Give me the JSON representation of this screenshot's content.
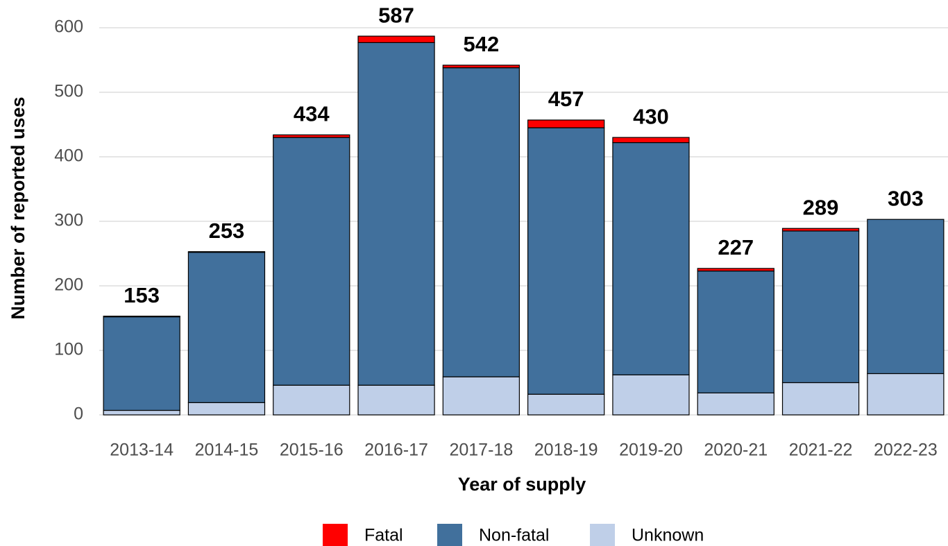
{
  "chart_data": {
    "type": "stacked-bar",
    "x_label": "Year of supply",
    "y_label": "Number of reported uses",
    "categories": [
      "2013-14",
      "2014-15",
      "2015-16",
      "2016-17",
      "2017-18",
      "2018-19",
      "2019-20",
      "2020-21",
      "2021-22",
      "2022-23"
    ],
    "series": [
      {
        "name": "Fatal",
        "color": "#ff0000",
        "values": [
          1,
          1,
          4,
          10,
          4,
          12,
          8,
          4,
          4,
          0
        ]
      },
      {
        "name": "Non-fatal",
        "color": "#41709c",
        "values": [
          145,
          233,
          384,
          531,
          479,
          413,
          360,
          189,
          235,
          239
        ]
      },
      {
        "name": "Unknown",
        "color": "#bfcfe8",
        "values": [
          7,
          19,
          46,
          46,
          59,
          32,
          62,
          34,
          50,
          64
        ]
      }
    ],
    "totals": [
      153,
      253,
      434,
      587,
      542,
      457,
      430,
      227,
      289,
      303
    ],
    "ylim": [
      0,
      620
    ],
    "yticks": [
      0,
      100,
      200,
      300,
      400,
      500,
      600
    ],
    "grid": true,
    "legend": "bottom"
  }
}
